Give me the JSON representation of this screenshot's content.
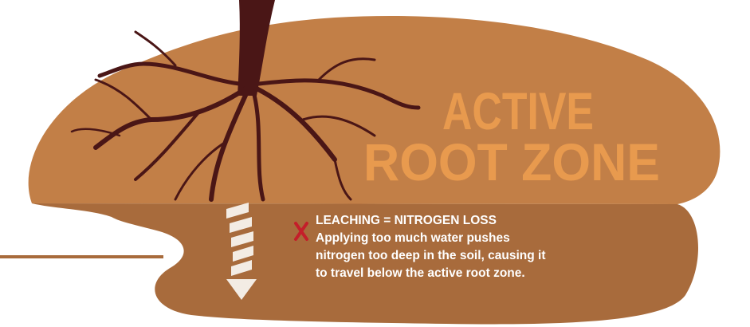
{
  "title": {
    "line1": "ACTIVE",
    "line2": "ROOT ZONE"
  },
  "callout": {
    "heading": "LEACHING = NITROGEN LOSS",
    "body_lines": [
      "Applying too much water pushes",
      "nitrogen too deep in the soil, causing it",
      "to travel below the active root zone."
    ]
  }
}
